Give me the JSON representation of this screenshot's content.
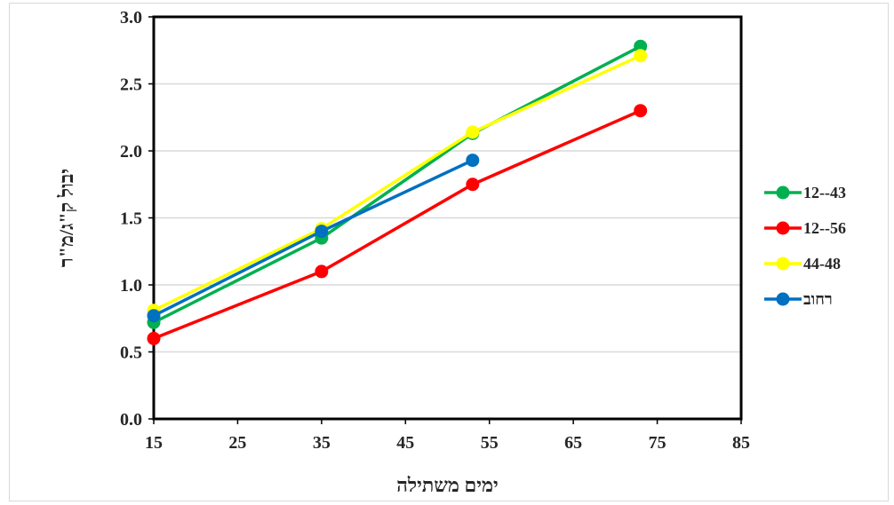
{
  "chart_data": {
    "type": "line",
    "xlabel": "ימים משתילה",
    "ylabel": "יבול ק\"ג/מ\"ר",
    "xlim": [
      15,
      85
    ],
    "ylim": [
      0,
      3
    ],
    "x_ticks": [
      "15",
      "25",
      "35",
      "45",
      "55",
      "65",
      "75",
      "85"
    ],
    "y_ticks": [
      "0.0",
      "0.5",
      "1.0",
      "1.5",
      "2.0",
      "2.5",
      "3.0"
    ],
    "grid": "horizontal",
    "legend_position": "right",
    "series": [
      {
        "name": "12--43",
        "color": "#00b050",
        "x": [
          15,
          35,
          53,
          73
        ],
        "y": [
          0.72,
          1.35,
          2.13,
          2.78
        ]
      },
      {
        "name": "12--56",
        "color": "#ff0000",
        "x": [
          15,
          35,
          53,
          73
        ],
        "y": [
          0.6,
          1.1,
          1.75,
          2.3
        ]
      },
      {
        "name": "44-48",
        "color": "#ffff00",
        "x": [
          15,
          35,
          53,
          73
        ],
        "y": [
          0.81,
          1.42,
          2.14,
          2.71
        ]
      },
      {
        "name": "רחוב",
        "color": "#0070c0",
        "x": [
          15,
          35,
          53
        ],
        "y": [
          0.77,
          1.4,
          1.93
        ]
      }
    ]
  }
}
